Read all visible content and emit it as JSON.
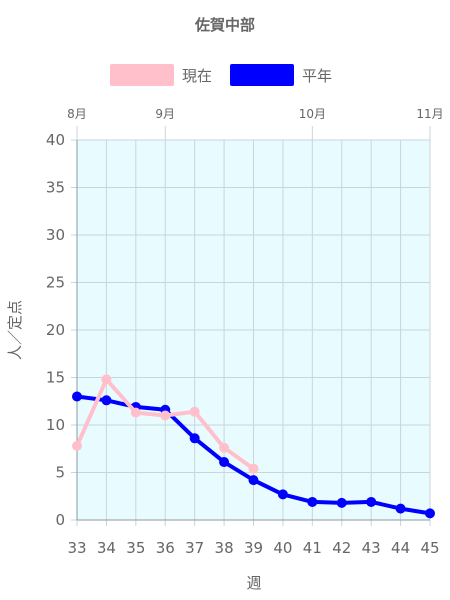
{
  "chart_data": {
    "type": "line",
    "title": "佐賀中部",
    "xlabel": "週",
    "ylabel": "人／定点",
    "ylim": [
      0,
      40
    ],
    "yticks": [
      0,
      5,
      10,
      15,
      20,
      25,
      30,
      35,
      40
    ],
    "x": [
      33,
      34,
      35,
      36,
      37,
      38,
      39,
      40,
      41,
      42,
      43,
      44,
      45
    ],
    "months": [
      {
        "label": "8月",
        "x": 33
      },
      {
        "label": "9月",
        "x": 36
      },
      {
        "label": "10月",
        "x": 41
      },
      {
        "label": "11月",
        "x": 45
      }
    ],
    "series": [
      {
        "name": "現在",
        "color": "#FFC0CB",
        "values": [
          7.8,
          14.8,
          11.3,
          11.0,
          11.4,
          7.6,
          5.4,
          null,
          null,
          null,
          null,
          null,
          null
        ]
      },
      {
        "name": "平年",
        "color": "#0000FF",
        "values": [
          13.0,
          12.6,
          11.9,
          11.6,
          8.6,
          6.1,
          4.2,
          2.7,
          1.9,
          1.8,
          1.9,
          1.2,
          0.7
        ]
      }
    ],
    "legend_position": "top",
    "grid": true,
    "plot_background": "#E8FCFF"
  }
}
